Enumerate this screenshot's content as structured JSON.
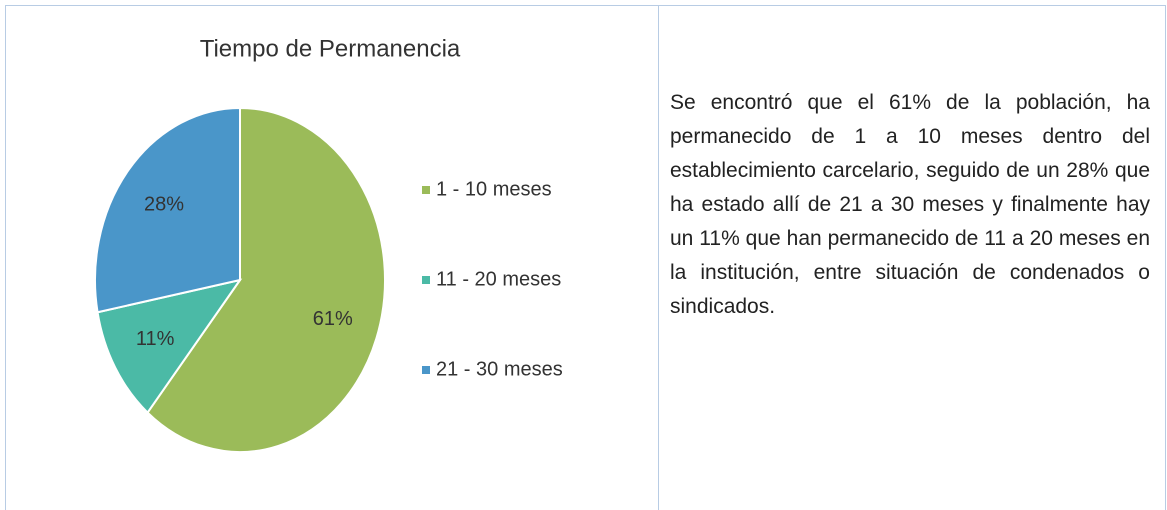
{
  "chart_data": {
    "type": "pie",
    "title": "Tiempo de Permanencia",
    "categories": [
      "1 - 10 meses",
      "11 - 20 meses",
      "21 - 30 meses"
    ],
    "values": [
      61,
      11,
      28
    ],
    "value_labels": [
      "61%",
      "11%",
      "28%"
    ],
    "colors": [
      "#9bbb59",
      "#4bbaa6",
      "#4a96c9"
    ],
    "legend": "right"
  },
  "text": {
    "paragraph": "Se encontró que el 61% de la población, ha permanecido de 1 a 10 meses dentro del establecimiento carcelario, seguido de un 28% que ha estado allí de 21 a 30 meses y finalmente hay un 11% que han permanecido de 11 a 20  meses en la institución,  entre situación de condenados o sindicados."
  }
}
